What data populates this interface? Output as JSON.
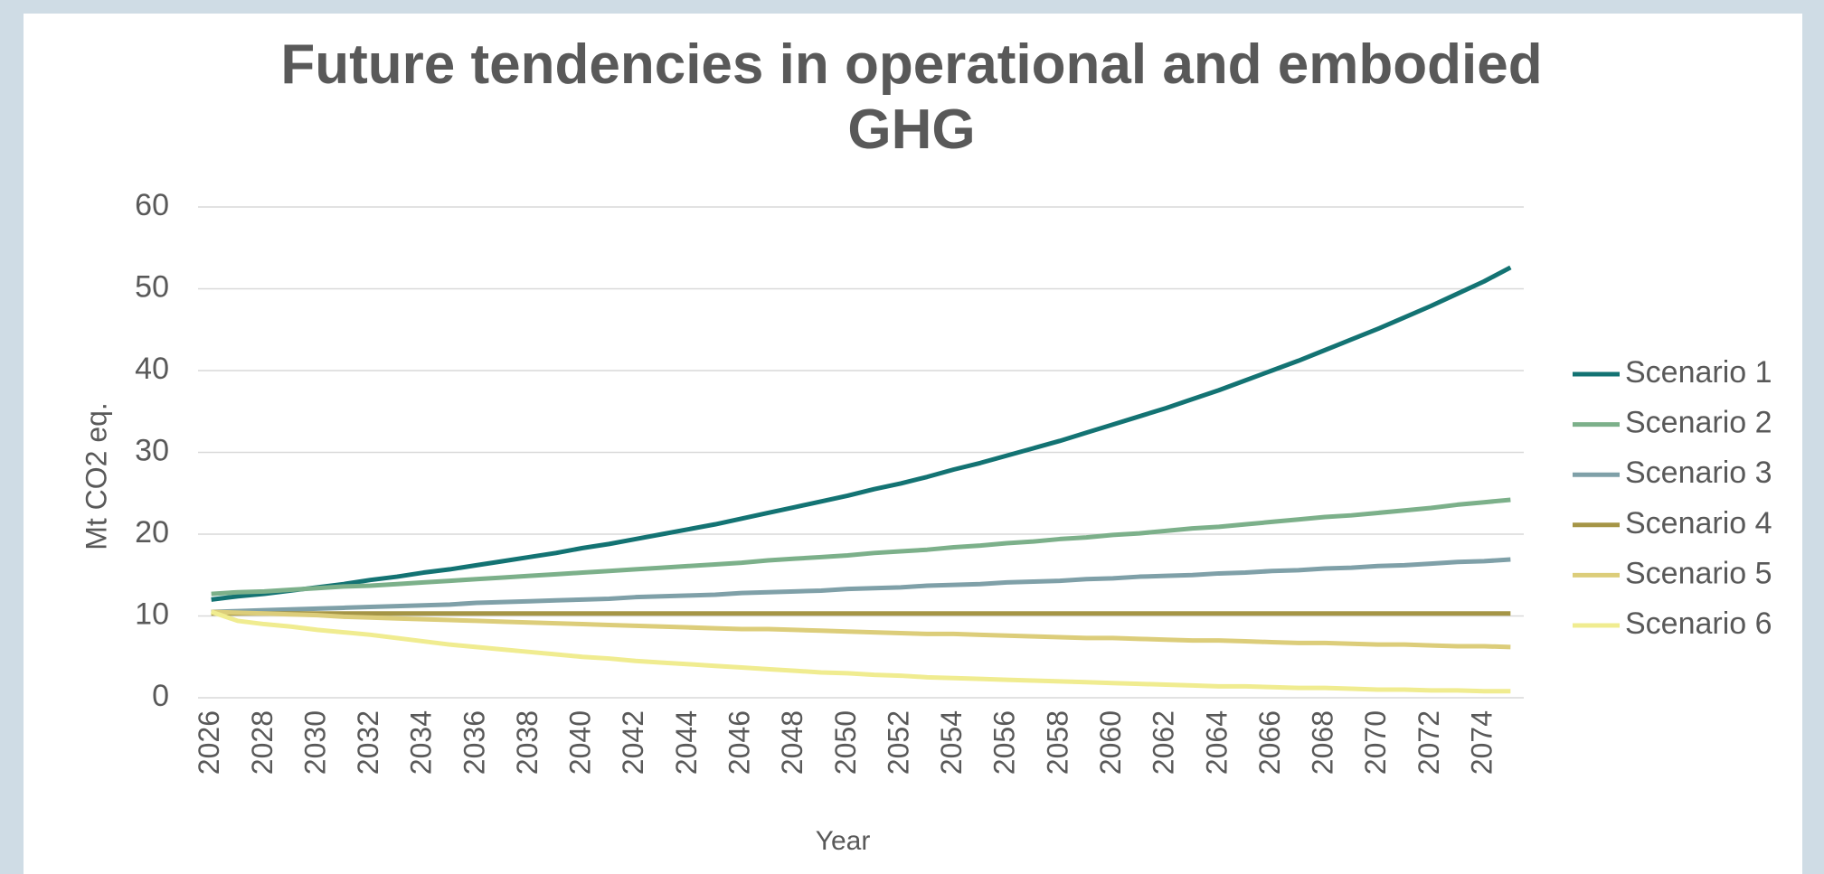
{
  "chart_data": {
    "type": "line",
    "title": "Future tendencies in operational and embodied GHG",
    "x_label": "Year",
    "y_label": "Mt CO2 eq.",
    "x": [
      2026,
      2027,
      2028,
      2029,
      2030,
      2031,
      2032,
      2033,
      2034,
      2035,
      2036,
      2037,
      2038,
      2039,
      2040,
      2041,
      2042,
      2043,
      2044,
      2045,
      2046,
      2047,
      2048,
      2049,
      2050,
      2051,
      2052,
      2053,
      2054,
      2055,
      2056,
      2057,
      2058,
      2059,
      2060,
      2061,
      2062,
      2063,
      2064,
      2065,
      2066,
      2067,
      2068,
      2069,
      2070,
      2071,
      2072,
      2073,
      2074,
      2075
    ],
    "xlim": [
      2025.5,
      2075.5
    ],
    "xticks": [
      2026,
      2028,
      2030,
      2032,
      2034,
      2036,
      2038,
      2040,
      2042,
      2044,
      2046,
      2048,
      2050,
      2052,
      2054,
      2056,
      2058,
      2060,
      2062,
      2064,
      2066,
      2068,
      2070,
      2072,
      2074
    ],
    "ylim": [
      0,
      60
    ],
    "yticks": [
      0,
      10,
      20,
      30,
      40,
      50,
      60
    ],
    "grid": true,
    "legend": "right",
    "series": [
      {
        "name": "Scenario 1",
        "color": "#137373",
        "values": [
          12.0,
          12.4,
          12.7,
          13.1,
          13.5,
          13.9,
          14.4,
          14.8,
          15.3,
          15.7,
          16.2,
          16.7,
          17.2,
          17.7,
          18.3,
          18.8,
          19.4,
          20.0,
          20.6,
          21.2,
          21.9,
          22.6,
          23.3,
          24.0,
          24.7,
          25.5,
          26.2,
          27.0,
          27.9,
          28.7,
          29.6,
          30.5,
          31.4,
          32.4,
          33.4,
          34.4,
          35.4,
          36.5,
          37.6,
          38.8,
          40.0,
          41.2,
          42.5,
          43.8,
          45.1,
          46.5,
          47.9,
          49.4,
          50.9,
          52.6
        ]
      },
      {
        "name": "Scenario 2",
        "color": "#7cb08a",
        "values": [
          12.7,
          12.9,
          13.0,
          13.2,
          13.4,
          13.6,
          13.7,
          13.9,
          14.1,
          14.3,
          14.5,
          14.7,
          14.9,
          15.1,
          15.3,
          15.5,
          15.7,
          15.9,
          16.1,
          16.3,
          16.5,
          16.8,
          17.0,
          17.2,
          17.4,
          17.7,
          17.9,
          18.1,
          18.4,
          18.6,
          18.9,
          19.1,
          19.4,
          19.6,
          19.9,
          20.1,
          20.4,
          20.7,
          20.9,
          21.2,
          21.5,
          21.8,
          22.1,
          22.3,
          22.6,
          22.9,
          23.2,
          23.6,
          23.9,
          24.2
        ]
      },
      {
        "name": "Scenario 3",
        "color": "#7fa0a8",
        "values": [
          10.5,
          10.6,
          10.7,
          10.8,
          10.9,
          11.0,
          11.1,
          11.2,
          11.3,
          11.4,
          11.6,
          11.7,
          11.8,
          11.9,
          12.0,
          12.1,
          12.3,
          12.4,
          12.5,
          12.6,
          12.8,
          12.9,
          13.0,
          13.1,
          13.3,
          13.4,
          13.5,
          13.7,
          13.8,
          13.9,
          14.1,
          14.2,
          14.3,
          14.5,
          14.6,
          14.8,
          14.9,
          15.0,
          15.2,
          15.3,
          15.5,
          15.6,
          15.8,
          15.9,
          16.1,
          16.2,
          16.4,
          16.6,
          16.7,
          16.9
        ]
      },
      {
        "name": "Scenario 4",
        "color": "#a59546",
        "values": [
          10.3,
          10.3,
          10.3,
          10.3,
          10.3,
          10.3,
          10.3,
          10.3,
          10.3,
          10.3,
          10.3,
          10.3,
          10.3,
          10.3,
          10.3,
          10.3,
          10.3,
          10.3,
          10.3,
          10.3,
          10.3,
          10.3,
          10.3,
          10.3,
          10.3,
          10.3,
          10.3,
          10.3,
          10.3,
          10.3,
          10.3,
          10.3,
          10.3,
          10.3,
          10.3,
          10.3,
          10.3,
          10.3,
          10.3,
          10.3,
          10.3,
          10.3,
          10.3,
          10.3,
          10.3,
          10.3,
          10.3,
          10.3,
          10.3,
          10.3
        ]
      },
      {
        "name": "Scenario 5",
        "color": "#dccd7a",
        "values": [
          10.5,
          10.4,
          10.3,
          10.2,
          10.1,
          9.9,
          9.8,
          9.7,
          9.6,
          9.5,
          9.4,
          9.3,
          9.2,
          9.1,
          9.0,
          8.9,
          8.8,
          8.7,
          8.6,
          8.5,
          8.4,
          8.4,
          8.3,
          8.2,
          8.1,
          8.0,
          7.9,
          7.8,
          7.8,
          7.7,
          7.6,
          7.5,
          7.4,
          7.3,
          7.3,
          7.2,
          7.1,
          7.0,
          7.0,
          6.9,
          6.8,
          6.7,
          6.7,
          6.6,
          6.5,
          6.5,
          6.4,
          6.3,
          6.3,
          6.2
        ]
      },
      {
        "name": "Scenario 6",
        "color": "#f0ec90",
        "values": [
          10.5,
          9.4,
          9.0,
          8.7,
          8.3,
          8.0,
          7.7,
          7.3,
          6.9,
          6.5,
          6.2,
          5.9,
          5.6,
          5.3,
          5.0,
          4.8,
          4.5,
          4.3,
          4.1,
          3.9,
          3.7,
          3.5,
          3.3,
          3.1,
          3.0,
          2.8,
          2.7,
          2.5,
          2.4,
          2.3,
          2.2,
          2.1,
          2.0,
          1.9,
          1.8,
          1.7,
          1.6,
          1.5,
          1.4,
          1.4,
          1.3,
          1.2,
          1.2,
          1.1,
          1.0,
          1.0,
          0.9,
          0.9,
          0.8,
          0.8
        ]
      }
    ]
  }
}
